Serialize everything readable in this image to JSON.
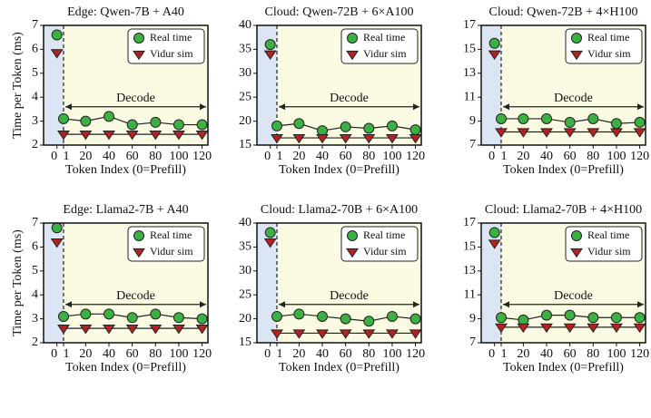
{
  "chart_data": [
    {
      "type": "line",
      "title": "Edge: Qwen-7B + A40",
      "xlabel": "Token Index (0=Prefill)",
      "ylabel": "Time per Token (ms)",
      "x": [
        0,
        1,
        20,
        40,
        60,
        80,
        100,
        120
      ],
      "series": [
        {
          "name": "Real time",
          "color": "#3cb043",
          "marker": "circle",
          "values": [
            6.6,
            3.1,
            3.0,
            3.2,
            2.85,
            2.95,
            2.85,
            2.85
          ]
        },
        {
          "name": "Vidur sim",
          "color": "#b22222",
          "marker": "triangle",
          "values": [
            5.85,
            2.45,
            2.45,
            2.45,
            2.45,
            2.45,
            2.45,
            2.45
          ]
        }
      ],
      "xlim": [
        -2,
        125
      ],
      "xticks": [
        0,
        1,
        20,
        40,
        60,
        80,
        100,
        120
      ],
      "ylim": [
        2,
        7
      ],
      "yticks": [
        2,
        3,
        4,
        5,
        6,
        7
      ],
      "legend": "upper right",
      "annotation": "Decode"
    },
    {
      "type": "line",
      "title": "Cloud: Qwen-72B + 6×A100",
      "xlabel": "Token Index (0=Prefill)",
      "x": [
        0,
        1,
        20,
        40,
        60,
        80,
        100,
        120
      ],
      "series": [
        {
          "name": "Real time",
          "color": "#3cb043",
          "marker": "circle",
          "values": [
            36,
            19,
            19.5,
            18,
            18.8,
            18.5,
            19,
            18.2
          ]
        },
        {
          "name": "Vidur sim",
          "color": "#b22222",
          "marker": "triangle",
          "values": [
            34,
            16.5,
            16.5,
            16.5,
            16.5,
            16.5,
            16.5,
            16.5
          ]
        }
      ],
      "xlim": [
        -2,
        125
      ],
      "xticks": [
        0,
        1,
        20,
        40,
        60,
        80,
        100,
        120
      ],
      "ylim": [
        15,
        40
      ],
      "yticks": [
        15,
        20,
        25,
        30,
        35,
        40
      ],
      "legend": "upper right",
      "annotation": "Decode"
    },
    {
      "type": "line",
      "title": "Cloud: Qwen-72B + 4×H100",
      "xlabel": "Token Index (0=Prefill)",
      "x": [
        0,
        1,
        20,
        40,
        60,
        80,
        100,
        120
      ],
      "series": [
        {
          "name": "Real time",
          "color": "#3cb043",
          "marker": "circle",
          "values": [
            15.5,
            9.2,
            9.2,
            9.2,
            8.9,
            9.2,
            8.8,
            8.9
          ]
        },
        {
          "name": "Vidur sim",
          "color": "#b22222",
          "marker": "triangle",
          "values": [
            14.6,
            8.1,
            8.1,
            8.1,
            8.1,
            8.1,
            8.1,
            8.1
          ]
        }
      ],
      "xlim": [
        -2,
        125
      ],
      "xticks": [
        0,
        1,
        20,
        40,
        60,
        80,
        100,
        120
      ],
      "ylim": [
        7,
        17
      ],
      "yticks": [
        7,
        9,
        11,
        13,
        15,
        17
      ],
      "legend": "upper right",
      "annotation": "Decode"
    },
    {
      "type": "line",
      "title": "Edge: Llama2-7B + A40",
      "xlabel": "Token Index (0=Prefill)",
      "ylabel": "Time per Token (ms)",
      "x": [
        0,
        1,
        20,
        40,
        60,
        80,
        100,
        120
      ],
      "series": [
        {
          "name": "Real time",
          "color": "#3cb043",
          "marker": "circle",
          "values": [
            6.8,
            3.1,
            3.2,
            3.2,
            3.05,
            3.2,
            3.05,
            3.0
          ]
        },
        {
          "name": "Vidur sim",
          "color": "#b22222",
          "marker": "triangle",
          "values": [
            6.2,
            2.6,
            2.6,
            2.6,
            2.6,
            2.6,
            2.6,
            2.6
          ]
        }
      ],
      "xlim": [
        -2,
        125
      ],
      "xticks": [
        0,
        1,
        20,
        40,
        60,
        80,
        100,
        120
      ],
      "ylim": [
        2,
        7
      ],
      "yticks": [
        2,
        3,
        4,
        5,
        6,
        7
      ],
      "legend": "upper right",
      "annotation": "Decode"
    },
    {
      "type": "line",
      "title": "Cloud: Llama2-70B + 6×A100",
      "xlabel": "Token Index (0=Prefill)",
      "x": [
        0,
        1,
        20,
        40,
        60,
        80,
        100,
        120
      ],
      "series": [
        {
          "name": "Real time",
          "color": "#3cb043",
          "marker": "circle",
          "values": [
            38,
            20.5,
            21,
            20.5,
            20,
            19.5,
            20.5,
            20
          ]
        },
        {
          "name": "Vidur sim",
          "color": "#b22222",
          "marker": "triangle",
          "values": [
            36,
            17,
            17,
            17,
            17,
            17,
            17,
            17
          ]
        }
      ],
      "xlim": [
        -2,
        125
      ],
      "xticks": [
        0,
        1,
        20,
        40,
        60,
        80,
        100,
        120
      ],
      "ylim": [
        15,
        40
      ],
      "yticks": [
        15,
        20,
        25,
        30,
        35,
        40
      ],
      "legend": "upper right",
      "annotation": "Decode"
    },
    {
      "type": "line",
      "title": "Cloud: Llama2-70B + 4×H100",
      "xlabel": "Token Index (0=Prefill)",
      "x": [
        0,
        1,
        20,
        40,
        60,
        80,
        100,
        120
      ],
      "series": [
        {
          "name": "Real time",
          "color": "#3cb043",
          "marker": "circle",
          "values": [
            16.2,
            9.1,
            8.9,
            9.3,
            9.3,
            9.1,
            9.1,
            9.1
          ]
        },
        {
          "name": "Vidur sim",
          "color": "#b22222",
          "marker": "triangle",
          "values": [
            15.3,
            8.3,
            8.3,
            8.3,
            8.3,
            8.3,
            8.3,
            8.3
          ]
        }
      ],
      "xlim": [
        -2,
        125
      ],
      "xticks": [
        0,
        1,
        20,
        40,
        60,
        80,
        100,
        120
      ],
      "ylim": [
        7,
        17
      ],
      "yticks": [
        7,
        9,
        11,
        13,
        15,
        17
      ],
      "legend": "upper right",
      "annotation": "Decode"
    }
  ]
}
